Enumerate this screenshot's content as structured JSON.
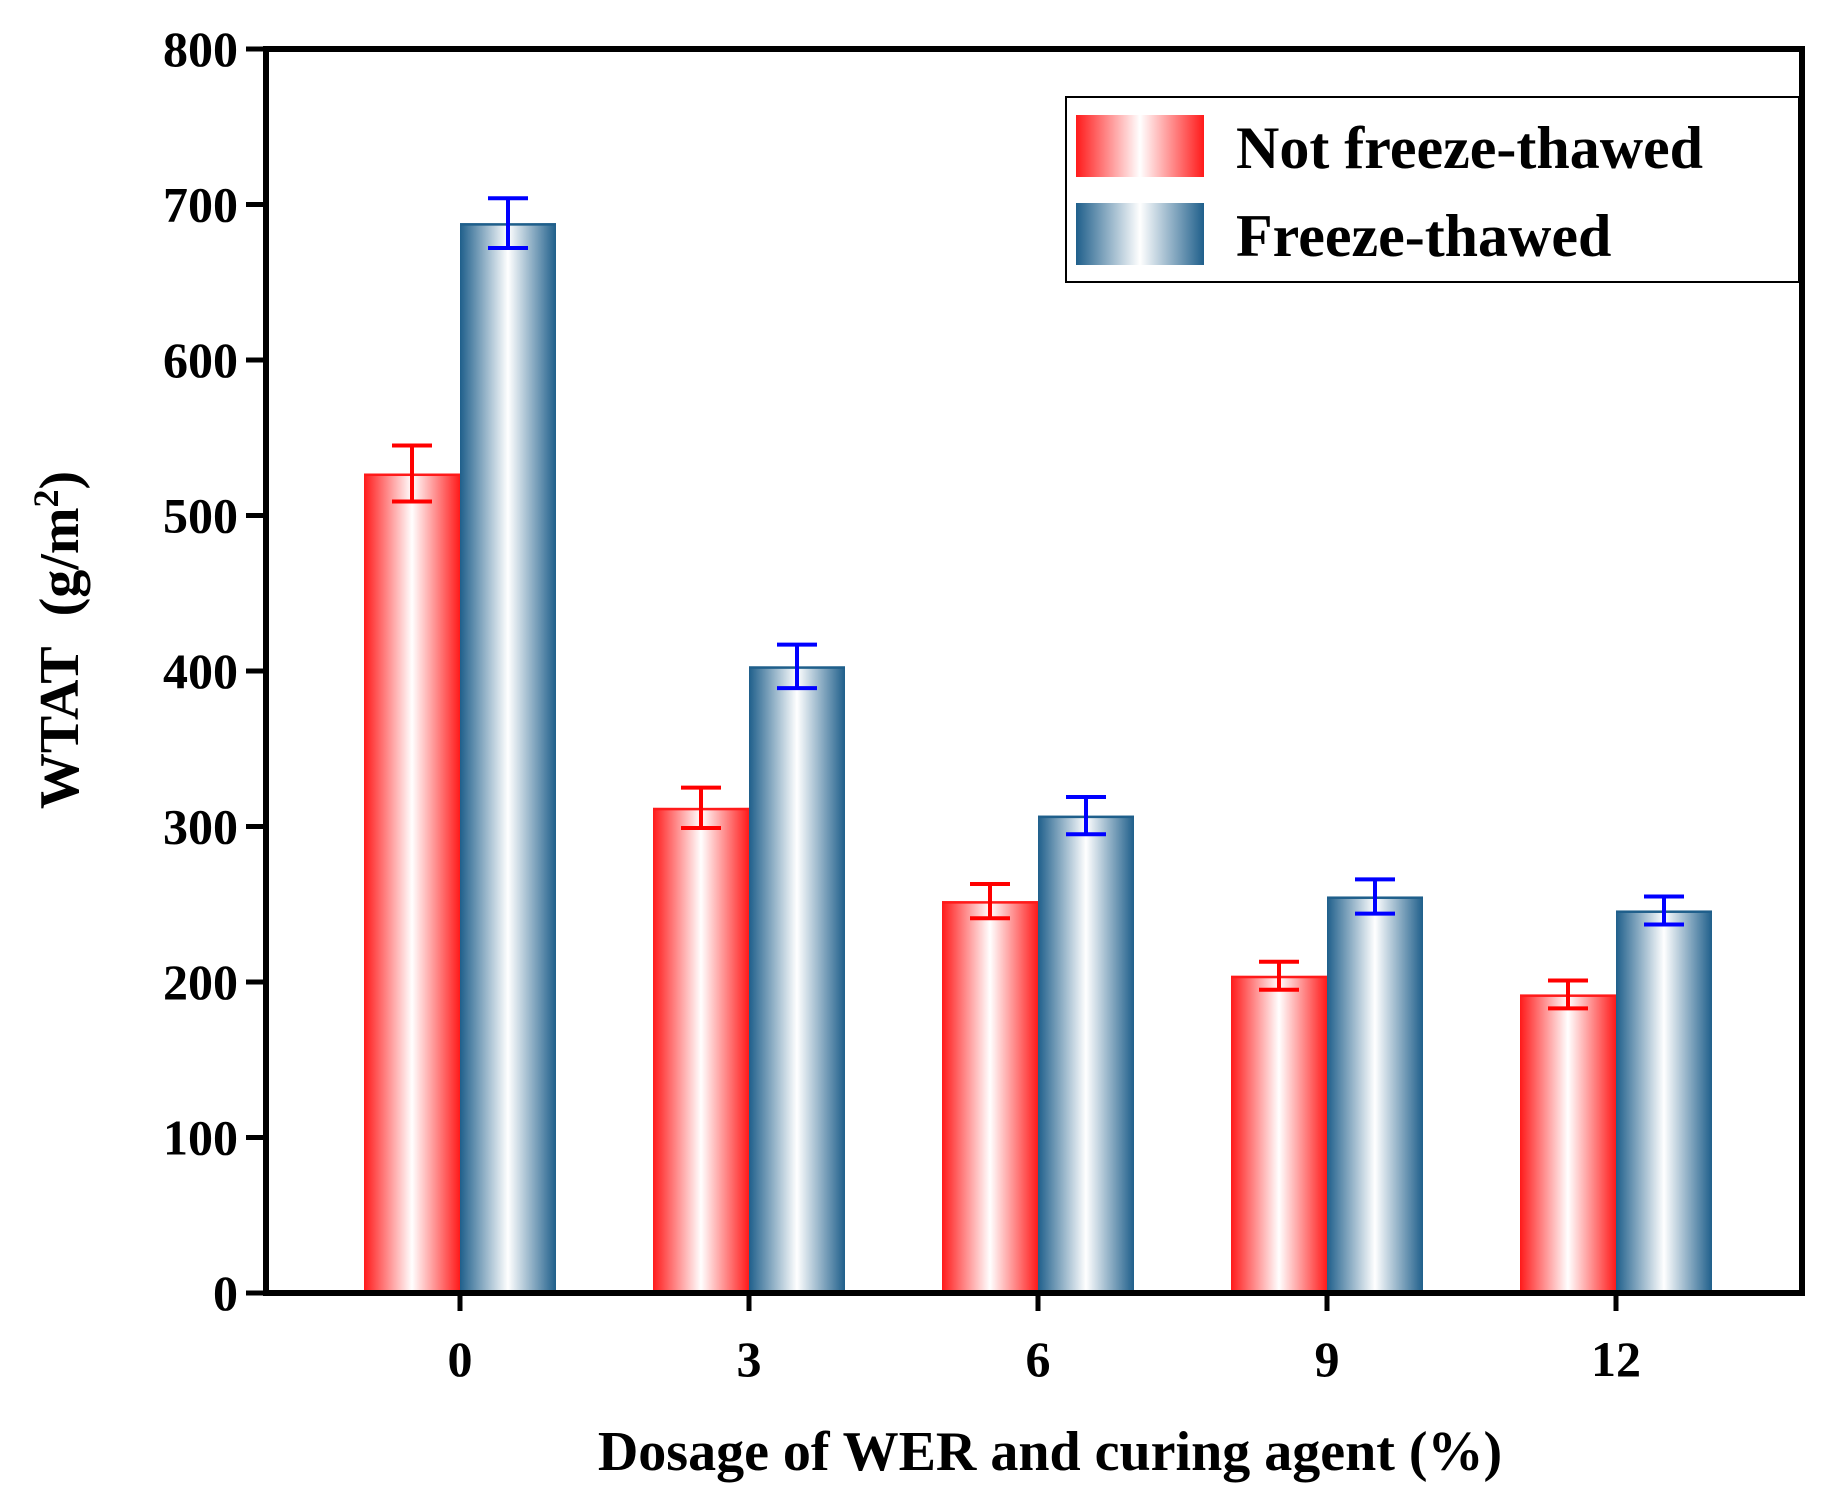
{
  "chart_data": {
    "type": "bar",
    "xlabel": "Dosage of WER and curing agent (%)",
    "ylabel_main": "WTAT",
    "ylabel_unit_open": "(g/m",
    "ylabel_unit_sup": "2",
    "ylabel_unit_close": ")",
    "categories": [
      "0",
      "3",
      "6",
      "9",
      "12"
    ],
    "ylim": [
      0,
      800
    ],
    "yticks": [
      "0",
      "100",
      "200",
      "300",
      "400",
      "500",
      "600",
      "700",
      "800"
    ],
    "series": [
      {
        "name": "Not freeze-thawed",
        "values": [
          527,
          312,
          252,
          204,
          192
        ],
        "errors": [
          18,
          13,
          11,
          9,
          9
        ],
        "edge_color": "#ff1a1a",
        "error_color": "#ff0000"
      },
      {
        "name": "Freeze-thawed",
        "values": [
          688,
          403,
          307,
          255,
          246
        ],
        "errors": [
          16,
          14,
          12,
          11,
          9
        ],
        "edge_color": "#1f5f8b",
        "error_color": "#0000ff"
      }
    ],
    "legend_position": "top-right"
  }
}
